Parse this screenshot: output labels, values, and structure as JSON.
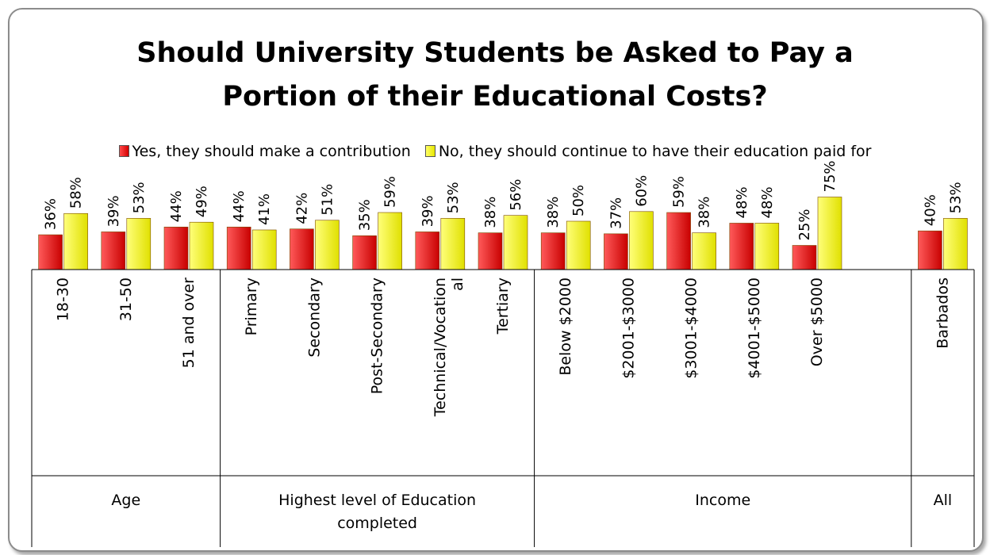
{
  "chart_data": {
    "type": "bar",
    "title": [
      "Should University Students be Asked to Pay a",
      "Portion of their Educational Costs?"
    ],
    "legend_position": "top",
    "series": [
      {
        "name": "Yes, they should make a contribution",
        "color": "#e00000",
        "values": [
          36,
          39,
          44,
          44,
          42,
          35,
          39,
          38,
          38,
          37,
          59,
          48,
          25,
          40
        ]
      },
      {
        "name": "No, they should continue to have their education paid for",
        "color": "#ffff00",
        "values": [
          58,
          53,
          49,
          41,
          51,
          59,
          53,
          56,
          50,
          60,
          38,
          48,
          75,
          53
        ]
      }
    ],
    "data_label_suffix": "%",
    "categories": [
      "18-30",
      "31-50",
      "51 and over",
      "Primary",
      "Secondary",
      "Post-Secondary",
      [
        "Technical/Vocation",
        "al"
      ],
      "Tertiary",
      "Below $2000",
      "$2001-$3000",
      "$3001-$4000",
      "$4001-$5000",
      "Over $5000",
      "Barbados"
    ],
    "groups": [
      {
        "label": [
          "Age"
        ],
        "size": 3
      },
      {
        "label": [
          "Highest level of Education",
          "completed"
        ],
        "size": 5
      },
      {
        "label": [
          "Income"
        ],
        "size": 5
      },
      {
        "label": [
          "All"
        ],
        "size": 1
      }
    ],
    "ylim": [
      0,
      100
    ],
    "grid": false
  }
}
